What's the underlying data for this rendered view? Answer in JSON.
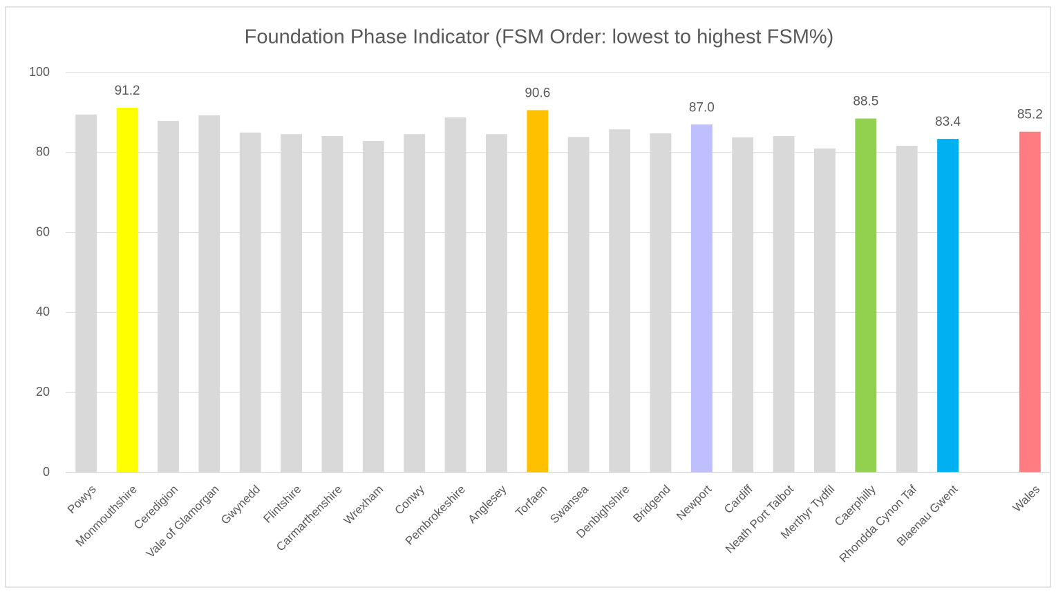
{
  "chart_data": {
    "type": "bar",
    "title": "Foundation Phase Indicator (FSM Order: lowest to highest FSM%)",
    "categories": [
      "Powys",
      "Monmouthshire",
      "Ceredigion",
      "Vale of Glamorgan",
      "Gwynedd",
      "Flintshire",
      "Carmarthenshire",
      "Wrexham",
      "Conwy",
      "Pembrokeshire",
      "Anglesey",
      "Torfaen",
      "Swansea",
      "Denbighshire",
      "Bridgend",
      "Newport",
      "Cardiff",
      "Neath Port Talbot",
      "Merthyr Tydfil",
      "Caerphilly",
      "Rhondda Cynon Taf",
      "Blaenau Gwent",
      null,
      "Wales"
    ],
    "values": [
      89.5,
      91.2,
      87.9,
      89.3,
      85.0,
      84.6,
      84.1,
      82.9,
      84.6,
      88.8,
      84.6,
      90.6,
      83.9,
      85.8,
      84.8,
      87.0,
      83.8,
      84.1,
      81.0,
      88.5,
      81.7,
      83.4,
      null,
      85.2
    ],
    "value_labels": [
      null,
      "91.2",
      null,
      null,
      null,
      null,
      null,
      null,
      null,
      null,
      null,
      "90.6",
      null,
      null,
      null,
      "87.0",
      null,
      null,
      null,
      "88.5",
      null,
      "83.4",
      null,
      "85.2"
    ],
    "colors": [
      "#d9d9d9",
      "#ffff00",
      "#d9d9d9",
      "#d9d9d9",
      "#d9d9d9",
      "#d9d9d9",
      "#d9d9d9",
      "#d9d9d9",
      "#d9d9d9",
      "#d9d9d9",
      "#d9d9d9",
      "#ffc000",
      "#d9d9d9",
      "#d9d9d9",
      "#d9d9d9",
      "#bfbfff",
      "#d9d9d9",
      "#d9d9d9",
      "#d9d9d9",
      "#92d050",
      "#d9d9d9",
      "#00b0f0",
      null,
      "#ff7c80"
    ],
    "ylim": [
      0,
      100
    ],
    "yticks": [
      0,
      20,
      40,
      60,
      80,
      100
    ],
    "grid": true
  }
}
